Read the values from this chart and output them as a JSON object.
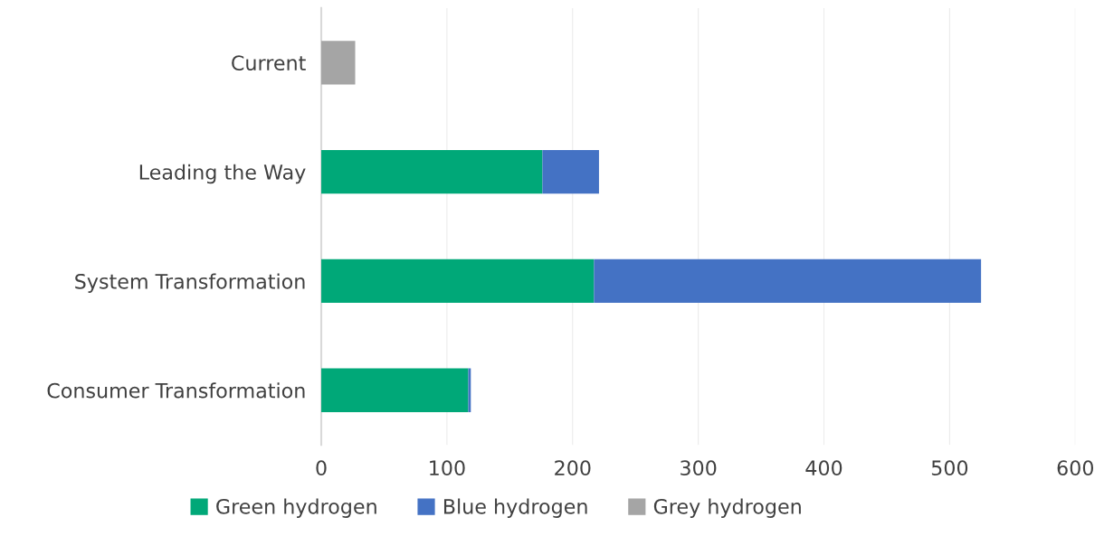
{
  "chart_data": {
    "type": "bar",
    "orientation": "horizontal",
    "stacked": true,
    "categories": [
      "Current",
      "Leading the Way",
      "System Transformation",
      "Consumer Transformation"
    ],
    "series": [
      {
        "name": "Green hydrogen",
        "color": "#00a878",
        "values": [
          0,
          176,
          217,
          117
        ]
      },
      {
        "name": "Blue hydrogen",
        "color": "#4472c4",
        "values": [
          0,
          45,
          308,
          2
        ]
      },
      {
        "name": "Grey hydrogen",
        "color": "#a5a5a5",
        "values": [
          27,
          0,
          0,
          0
        ]
      }
    ],
    "xlim": [
      0,
      600
    ],
    "xticks": [
      0,
      100,
      200,
      300,
      400,
      500,
      600
    ],
    "grid": "x",
    "legend": "bottom"
  }
}
